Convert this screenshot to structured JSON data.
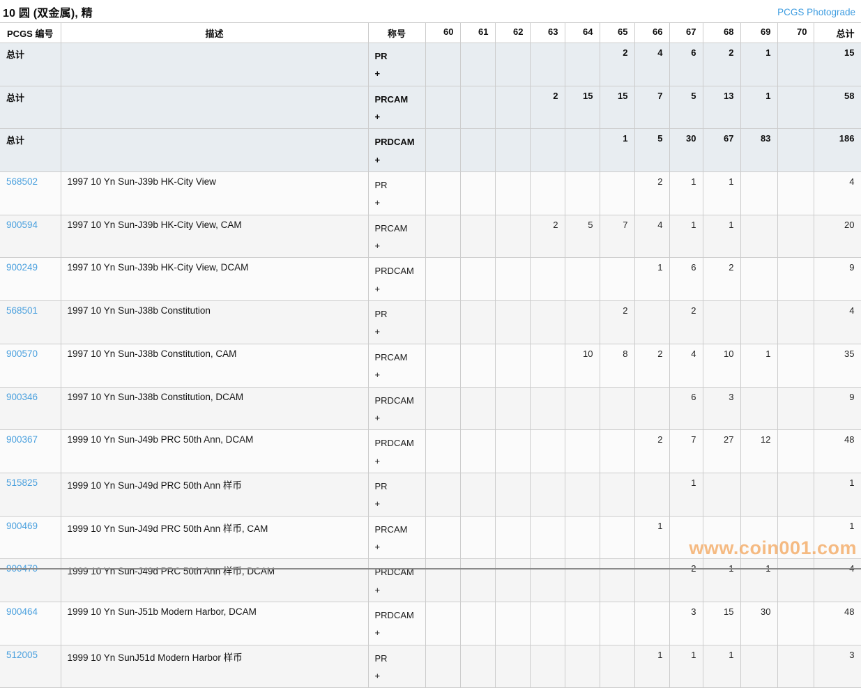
{
  "header": {
    "title": "10 圆 (双金属), 精",
    "photograde_link": "PCGS Photograde"
  },
  "watermark": "www.coin001.com",
  "colors": {
    "link_blue": "#4aa0de",
    "photograde_blue": "#3d9ce0",
    "totals_row_bg": "#e8edf1",
    "row_bg": "#fbfbfb",
    "row_alt_bg": "#f5f5f5",
    "border": "#cccccc",
    "watermark_orange": "#f3a860"
  },
  "table": {
    "columns": [
      "PCGS 编号",
      "描述",
      "称号",
      "60",
      "61",
      "62",
      "63",
      "64",
      "65",
      "66",
      "67",
      "68",
      "69",
      "70",
      "总计"
    ],
    "totals_label": "总计",
    "totals_rows": [
      {
        "designation": "PR",
        "plus": "+",
        "grades": [
          "",
          "",
          "",
          "",
          "",
          "2",
          "4",
          "6",
          "2",
          "1",
          "",
          "15"
        ]
      },
      {
        "designation": "PRCAM",
        "plus": "+",
        "grades": [
          "",
          "",
          "",
          "2",
          "15",
          "15",
          "7",
          "5",
          "13",
          "1",
          "",
          "58"
        ]
      },
      {
        "designation": "PRDCAM",
        "plus": "+",
        "grades": [
          "",
          "",
          "",
          "",
          "",
          "1",
          "5",
          "30",
          "67",
          "83",
          "",
          "186"
        ]
      }
    ],
    "rows": [
      {
        "pcgs": "568502",
        "desc": "1997 10 Yn Sun-J39b HK-City View",
        "designation": "PR",
        "plus": "+",
        "grades": [
          "",
          "",
          "",
          "",
          "",
          "",
          "2",
          "1",
          "1",
          "",
          "",
          "4"
        ]
      },
      {
        "pcgs": "900594",
        "desc": "1997 10 Yn Sun-J39b HK-City View, CAM",
        "designation": "PRCAM",
        "plus": "+",
        "grades": [
          "",
          "",
          "",
          "2",
          "5",
          "7",
          "4",
          "1",
          "1",
          "",
          "",
          "20"
        ]
      },
      {
        "pcgs": "900249",
        "desc": "1997 10 Yn Sun-J39b HK-City View, DCAM",
        "designation": "PRDCAM",
        "plus": "+",
        "grades": [
          "",
          "",
          "",
          "",
          "",
          "",
          "1",
          "6",
          "2",
          "",
          "",
          "9"
        ]
      },
      {
        "pcgs": "568501",
        "desc": "1997 10 Yn Sun-J38b Constitution",
        "designation": "PR",
        "plus": "+",
        "grades": [
          "",
          "",
          "",
          "",
          "",
          "2",
          "",
          "2",
          "",
          "",
          "",
          "4"
        ]
      },
      {
        "pcgs": "900570",
        "desc": "1997 10 Yn Sun-J38b Constitution, CAM",
        "designation": "PRCAM",
        "plus": "+",
        "grades": [
          "",
          "",
          "",
          "",
          "10",
          "8",
          "2",
          "4",
          "10",
          "1",
          "",
          "35"
        ]
      },
      {
        "pcgs": "900346",
        "desc": "1997 10 Yn Sun-J38b Constitution, DCAM",
        "designation": "PRDCAM",
        "plus": "+",
        "grades": [
          "",
          "",
          "",
          "",
          "",
          "",
          "",
          "6",
          "3",
          "",
          "",
          "9"
        ]
      },
      {
        "pcgs": "900367",
        "desc": "1999 10 Yn Sun-J49b PRC 50th Ann, DCAM",
        "designation": "PRDCAM",
        "plus": "+",
        "grades": [
          "",
          "",
          "",
          "",
          "",
          "",
          "2",
          "7",
          "27",
          "12",
          "",
          "48"
        ]
      },
      {
        "pcgs": "515825",
        "desc": "1999 10 Yn Sun-J49d PRC 50th Ann 样币",
        "designation": "PR",
        "plus": "+",
        "grades": [
          "",
          "",
          "",
          "",
          "",
          "",
          "",
          "1",
          "",
          "",
          "",
          "1"
        ]
      },
      {
        "pcgs": "900469",
        "desc": "1999 10 Yn Sun-J49d PRC 50th Ann 样币, CAM",
        "designation": "PRCAM",
        "plus": "+",
        "grades": [
          "",
          "",
          "",
          "",
          "",
          "",
          "1",
          "",
          "",
          "",
          "",
          "1"
        ]
      },
      {
        "pcgs": "900470",
        "desc": "1999 10 Yn Sun-J49d PRC 50th Ann 样币, DCAM",
        "designation": "PRDCAM",
        "plus": "+",
        "grades": [
          "",
          "",
          "",
          "",
          "",
          "",
          "",
          "2",
          "1",
          "1",
          "",
          "4"
        ]
      },
      {
        "pcgs": "900464",
        "desc": "1999 10 Yn Sun-J51b Modern Harbor, DCAM",
        "designation": "PRDCAM",
        "plus": "+",
        "grades": [
          "",
          "",
          "",
          "",
          "",
          "",
          "",
          "3",
          "15",
          "30",
          "",
          "48"
        ]
      },
      {
        "pcgs": "512005",
        "desc": "1999 10 Yn SunJ51d Modern Harbor 样币",
        "designation": "PR",
        "plus": "+",
        "grades": [
          "",
          "",
          "",
          "",
          "",
          "",
          "1",
          "1",
          "1",
          "",
          "",
          "3"
        ]
      }
    ]
  }
}
